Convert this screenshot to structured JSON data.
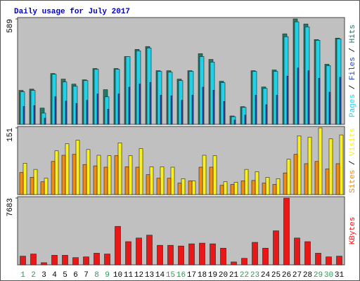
{
  "title": "Daily usage for July 2017",
  "legend_separator": " / ",
  "chart_data": [
    {
      "type": "bar",
      "ylim": [
        0,
        589
      ],
      "yticks": [
        589
      ],
      "series": [
        {
          "name": "Pages",
          "color": "#22d0e8",
          "values": [
            182,
            190,
            63,
            280,
            237,
            213,
            245,
            308,
            154,
            308,
            379,
            411,
            427,
            296,
            292,
            245,
            296,
            379,
            348,
            233,
            43,
            95,
            296,
            201,
            296,
            490,
            573,
            545,
            470,
            328,
            478
          ]
        },
        {
          "name": "Files",
          "color": "#2848b8",
          "values": [
            100,
            105,
            35,
            155,
            130,
            117,
            135,
            170,
            85,
            170,
            208,
            226,
            235,
            163,
            160,
            135,
            163,
            208,
            191,
            128,
            24,
            52,
            163,
            110,
            163,
            270,
            315,
            300,
            258,
            180,
            263
          ]
        },
        {
          "name": "Hits",
          "color": "#1f7a66",
          "values": [
            190,
            197,
            91,
            284,
            253,
            225,
            249,
            312,
            194,
            312,
            379,
            419,
            435,
            300,
            300,
            253,
            300,
            395,
            363,
            241,
            47,
            99,
            300,
            209,
            304,
            506,
            589,
            561,
            474,
            336,
            482
          ]
        }
      ]
    },
    {
      "type": "bar",
      "ylim": [
        0,
        151
      ],
      "yticks": [
        151
      ],
      "series": [
        {
          "name": "Sites",
          "color": "#f08a10",
          "values": [
            50,
            39,
            29,
            75,
            89,
            91,
            68,
            65,
            62,
            88,
            63,
            62,
            45,
            37,
            37,
            26,
            31,
            62,
            62,
            21,
            23,
            31,
            32,
            26,
            23,
            49,
            91,
            70,
            75,
            58,
            70
          ]
        },
        {
          "name": "Visits",
          "color": "#f8f020",
          "values": [
            71,
            57,
            37,
            99,
            115,
            123,
            102,
            89,
            88,
            117,
            88,
            104,
            63,
            63,
            62,
            36,
            31,
            89,
            88,
            29,
            28,
            57,
            52,
            39,
            36,
            80,
            133,
            130,
            151,
            126,
            135
          ]
        }
      ]
    },
    {
      "type": "bar",
      "ylim": [
        0,
        7683
      ],
      "yticks": [
        7683
      ],
      "categories": [
        "1",
        "2",
        "3",
        "4",
        "5",
        "6",
        "7",
        "8",
        "9",
        "10",
        "11",
        "12",
        "13",
        "14",
        "15",
        "16",
        "17",
        "18",
        "19",
        "20",
        "21",
        "22",
        "23",
        "24",
        "25",
        "26",
        "27",
        "28",
        "29",
        "30",
        "31"
      ],
      "category_colors": [
        "#2a9a50",
        "#2a9a50",
        "#000",
        "#000",
        "#000",
        "#000",
        "#000",
        "#2a9a50",
        "#2a9a50",
        "#000",
        "#000",
        "#000",
        "#000",
        "#000",
        "#2a9a50",
        "#2a9a50",
        "#000",
        "#000",
        "#000",
        "#000",
        "#000",
        "#2a9a50",
        "#2a9a50",
        "#000",
        "#000",
        "#000",
        "#000",
        "#000",
        "#2a9a50",
        "#2a9a50",
        "#000"
      ],
      "series": [
        {
          "name": "KBytes",
          "color": "#e81818",
          "values": [
            1000,
            1250,
            250,
            1100,
            1100,
            835,
            920,
            1340,
            1250,
            4430,
            2670,
            3090,
            3420,
            2250,
            2250,
            2170,
            2420,
            2500,
            2420,
            1920,
            335,
            750,
            2590,
            1920,
            3920,
            7683,
            3090,
            2670,
            1340,
            920,
            1000
          ]
        }
      ]
    }
  ]
}
